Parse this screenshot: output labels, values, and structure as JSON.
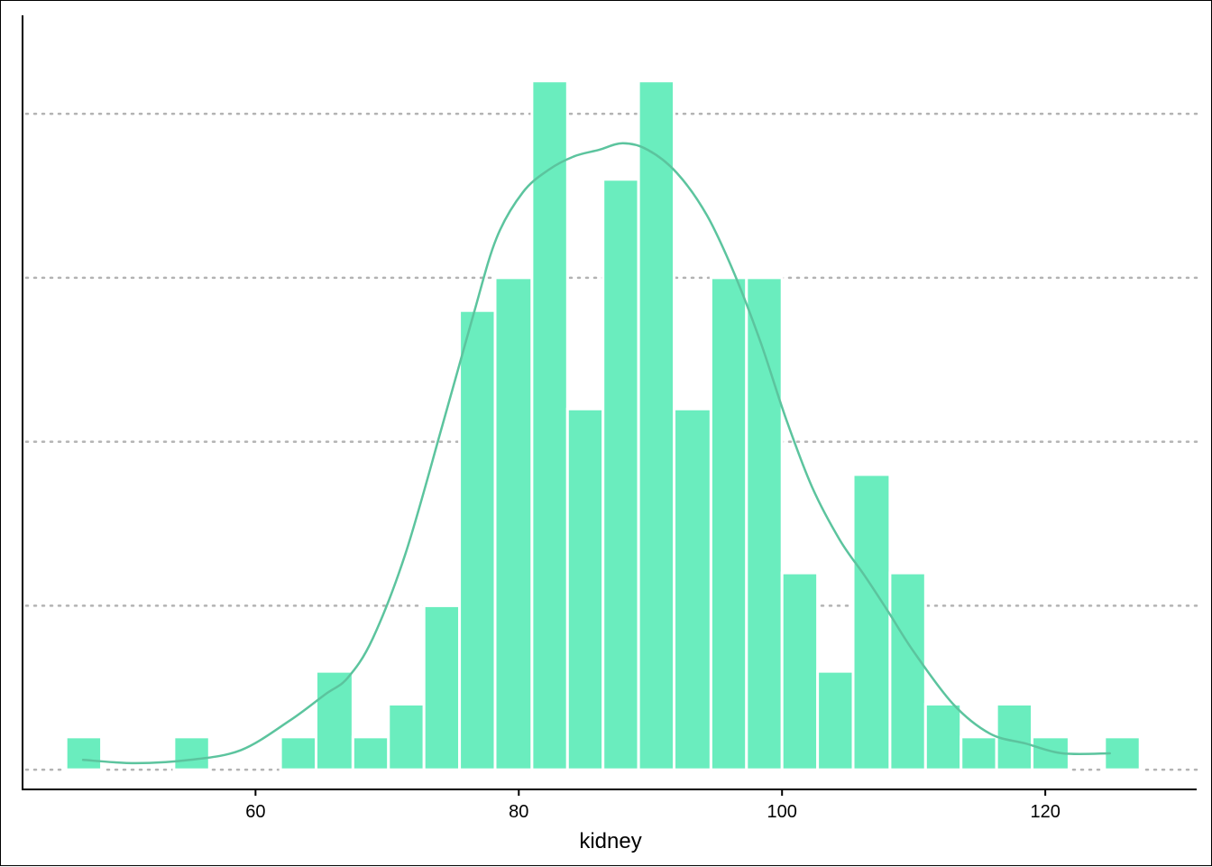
{
  "chart_data": {
    "type": "bar",
    "subtype": "histogram-with-density",
    "title": "",
    "xlabel": "kidney",
    "ylabel": "",
    "xlim": [
      42.3,
      131.5
    ],
    "ylim": [
      -0.6,
      23
    ],
    "x_ticks": [
      60,
      80,
      100,
      120
    ],
    "x_tick_labels": [
      "60",
      "80",
      "100",
      "120"
    ],
    "y_gridlines": [
      0,
      5,
      10,
      15,
      20
    ],
    "y_ticks_labeled": false,
    "grid": "horizontal dotted",
    "legend": "none",
    "bin_width": 2.72,
    "bins": [
      {
        "start": 45.6,
        "end": 48.3,
        "count": 1
      },
      {
        "start": 48.3,
        "end": 51.0,
        "count": 0
      },
      {
        "start": 51.0,
        "end": 53.8,
        "count": 0
      },
      {
        "start": 53.8,
        "end": 56.5,
        "count": 1
      },
      {
        "start": 56.5,
        "end": 59.2,
        "count": 0
      },
      {
        "start": 59.2,
        "end": 61.9,
        "count": 0
      },
      {
        "start": 61.9,
        "end": 64.6,
        "count": 1
      },
      {
        "start": 64.6,
        "end": 67.4,
        "count": 3
      },
      {
        "start": 67.4,
        "end": 70.1,
        "count": 1
      },
      {
        "start": 70.1,
        "end": 72.8,
        "count": 2
      },
      {
        "start": 72.8,
        "end": 75.5,
        "count": 5
      },
      {
        "start": 75.5,
        "end": 78.2,
        "count": 14
      },
      {
        "start": 78.2,
        "end": 81.0,
        "count": 15
      },
      {
        "start": 81.0,
        "end": 83.7,
        "count": 21
      },
      {
        "start": 83.7,
        "end": 86.4,
        "count": 11
      },
      {
        "start": 86.4,
        "end": 89.1,
        "count": 18
      },
      {
        "start": 89.1,
        "end": 91.8,
        "count": 21
      },
      {
        "start": 91.8,
        "end": 94.6,
        "count": 11
      },
      {
        "start": 94.6,
        "end": 97.3,
        "count": 15
      },
      {
        "start": 97.3,
        "end": 100.0,
        "count": 15
      },
      {
        "start": 100.0,
        "end": 102.7,
        "count": 6
      },
      {
        "start": 102.7,
        "end": 105.4,
        "count": 3
      },
      {
        "start": 105.4,
        "end": 108.2,
        "count": 9
      },
      {
        "start": 108.2,
        "end": 110.9,
        "count": 6
      },
      {
        "start": 110.9,
        "end": 113.6,
        "count": 2
      },
      {
        "start": 113.6,
        "end": 116.3,
        "count": 1
      },
      {
        "start": 116.3,
        "end": 119.0,
        "count": 2
      },
      {
        "start": 119.0,
        "end": 121.8,
        "count": 1
      },
      {
        "start": 121.8,
        "end": 124.5,
        "count": 0
      },
      {
        "start": 124.5,
        "end": 127.2,
        "count": 1
      }
    ],
    "density_curve": {
      "x": [
        46.9,
        50.9,
        55.0,
        58.9,
        62.6,
        65.3,
        67.0,
        68.9,
        71.4,
        74.2,
        76.5,
        78.3,
        80.3,
        82.3,
        84.2,
        86.1,
        87.9,
        89.8,
        92.0,
        94.3,
        96.4,
        98.4,
        100.3,
        102.3,
        104.4,
        106.3,
        108.1,
        110.0,
        113.0,
        115.8,
        118.5,
        121.3,
        124.9
      ],
      "y": [
        0.3,
        0.2,
        0.3,
        0.6,
        1.5,
        2.3,
        2.8,
        4.0,
        6.6,
        10.5,
        13.8,
        16.2,
        17.6,
        18.3,
        18.7,
        18.9,
        19.1,
        18.9,
        18.2,
        16.9,
        15.1,
        13.0,
        10.7,
        8.6,
        7.0,
        5.9,
        4.8,
        3.6,
        2.0,
        1.1,
        0.8,
        0.5,
        0.5
      ]
    },
    "colors": {
      "bar_fill": "#6aedbe",
      "bar_edge": "#ffffff",
      "density_line": "#5cc49e",
      "grid": "#b3b3b3",
      "axis": "#000000"
    }
  }
}
